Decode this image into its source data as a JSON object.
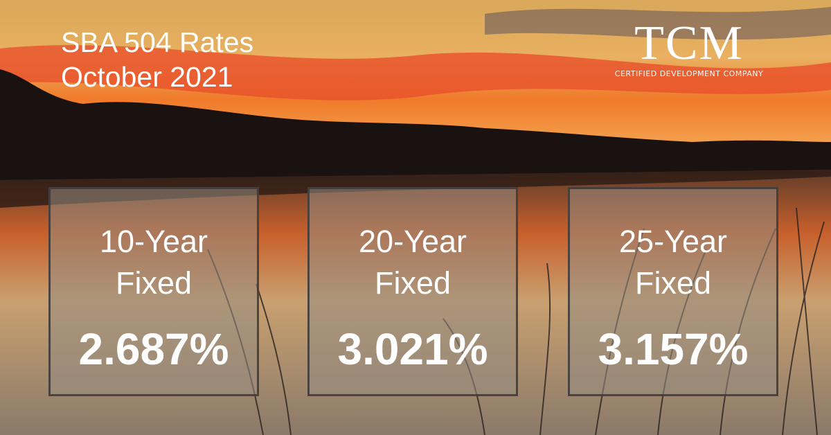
{
  "header": {
    "title_lines": [
      "SBA 504 Rates",
      "October 2021"
    ]
  },
  "logo": {
    "mark": "TCM",
    "tagline": "CERTIFIED DEVELOPMENT COMPANY"
  },
  "rates": [
    {
      "label_lines": [
        "10-Year",
        "Fixed"
      ],
      "rate": "2.687%"
    },
    {
      "label_lines": [
        "20-Year",
        "Fixed"
      ],
      "rate": "3.021%"
    },
    {
      "label_lines": [
        "25-Year",
        "Fixed"
      ],
      "rate": "3.157%"
    }
  ]
}
